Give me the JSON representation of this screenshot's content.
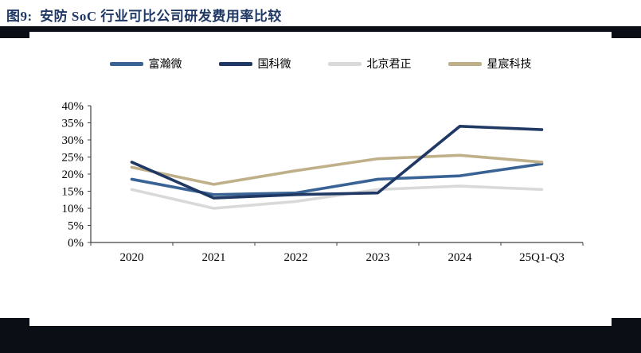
{
  "header": {
    "title": "图9:  安防 SoC 行业可比公司研发费用率比较",
    "title_color": "#1f3864"
  },
  "chart_data": {
    "type": "line",
    "title": "安防 SoC 行业可比公司研发费用率比较",
    "categories": [
      "2020",
      "2021",
      "2022",
      "2023",
      "2024",
      "25Q1-Q3"
    ],
    "series": [
      {
        "name": "富瀚微",
        "color": "#3a6395",
        "values": [
          18.5,
          14.0,
          14.5,
          18.5,
          19.5,
          23.0
        ]
      },
      {
        "name": "国科微",
        "color": "#1f3864",
        "values": [
          23.5,
          13.0,
          14.0,
          14.5,
          34.0,
          33.0
        ]
      },
      {
        "name": "北京君正",
        "color": "#d9d9d9",
        "values": [
          15.5,
          10.0,
          12.0,
          15.5,
          16.5,
          15.5
        ]
      },
      {
        "name": "星宸科技",
        "color": "#bfb08a",
        "values": [
          22.0,
          17.0,
          21.0,
          24.5,
          25.5,
          23.5
        ]
      }
    ],
    "y_ticks": [
      0,
      5,
      10,
      15,
      20,
      25,
      30,
      35,
      40
    ],
    "y_tick_suffix": "%",
    "ylim": [
      0,
      40
    ],
    "xlabel": "",
    "ylabel": "",
    "grid": false,
    "legend_position": "top"
  }
}
